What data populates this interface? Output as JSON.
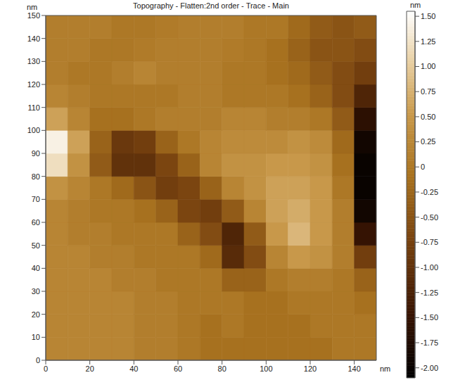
{
  "chart_data": {
    "type": "heatmap",
    "title": "Topography - Flatten:2nd order - Trace - Main",
    "x_label": "nm",
    "y_label": "nm",
    "xlim": [
      0,
      150
    ],
    "ylim": [
      0,
      150
    ],
    "xticks": [
      0,
      20,
      40,
      60,
      80,
      100,
      120,
      140
    ],
    "yticks": [
      0,
      10,
      20,
      30,
      40,
      50,
      60,
      70,
      80,
      90,
      100,
      110,
      120,
      130,
      140,
      150
    ],
    "x_bins": [
      0,
      10,
      20,
      30,
      40,
      50,
      60,
      70,
      80,
      90,
      100,
      110,
      120,
      130,
      140,
      150
    ],
    "y_bins": [
      0,
      10,
      20,
      30,
      40,
      50,
      60,
      70,
      80,
      90,
      100,
      110,
      120,
      130,
      140,
      150
    ],
    "cells": [
      [
        0.2,
        0.2,
        0.2,
        0.2,
        0.1,
        0.1,
        0.0,
        -0.1,
        -0.1,
        -0.1,
        -0.1,
        -0.1,
        -0.1,
        0.0,
        0.0
      ],
      [
        0.2,
        0.2,
        0.2,
        0.2,
        0.1,
        0.1,
        0.0,
        -0.1,
        0.0,
        -0.1,
        -0.1,
        -0.1,
        0.0,
        0.0,
        0.0
      ],
      [
        0.2,
        0.2,
        0.2,
        0.2,
        0.1,
        0.1,
        0.0,
        0.0,
        0.0,
        -0.1,
        -0.1,
        0.0,
        0.0,
        0.0,
        -0.1
      ],
      [
        0.2,
        0.2,
        0.2,
        0.1,
        0.1,
        0.0,
        0.0,
        0.0,
        -0.3,
        -0.3,
        0.0,
        0.1,
        0.1,
        0.0,
        -0.3
      ],
      [
        0.2,
        0.2,
        0.1,
        0.1,
        0.0,
        0.0,
        0.0,
        -0.2,
        -1.1,
        -0.6,
        0.2,
        0.5,
        0.4,
        0.1,
        -0.8
      ],
      [
        0.2,
        0.1,
        0.1,
        0.0,
        0.0,
        0.0,
        -0.3,
        -0.6,
        -1.2,
        -0.4,
        0.5,
        0.8,
        0.5,
        0.1,
        -1.5
      ],
      [
        0.2,
        0.1,
        0.0,
        0.0,
        -0.1,
        -0.3,
        -0.7,
        -0.8,
        -0.4,
        0.2,
        0.6,
        0.7,
        0.5,
        0.1,
        -1.9
      ],
      [
        0.4,
        0.2,
        0.0,
        -0.2,
        -0.5,
        -0.8,
        -0.7,
        -0.3,
        0.2,
        0.4,
        0.6,
        0.6,
        0.5,
        0.0,
        -2.0
      ],
      [
        1.2,
        0.4,
        -0.4,
        -1.0,
        -1.0,
        -0.7,
        -0.3,
        0.2,
        0.4,
        0.4,
        0.5,
        0.5,
        0.4,
        -0.1,
        -2.0
      ],
      [
        1.4,
        0.6,
        -0.3,
        -0.9,
        -0.8,
        -0.3,
        0.0,
        0.2,
        0.3,
        0.3,
        0.3,
        0.4,
        0.3,
        -0.2,
        -1.9
      ],
      [
        0.6,
        0.2,
        -0.1,
        -0.1,
        0.0,
        0.1,
        0.1,
        0.1,
        0.2,
        0.2,
        0.1,
        0.1,
        0.0,
        -0.4,
        -1.6
      ],
      [
        0.2,
        0.1,
        0.0,
        0.0,
        0.0,
        0.0,
        0.1,
        0.1,
        0.0,
        0.0,
        0.0,
        -0.1,
        -0.3,
        -0.6,
        -1.2
      ],
      [
        0.1,
        0.0,
        0.0,
        0.1,
        0.2,
        0.1,
        0.1,
        0.1,
        0.0,
        0.0,
        -0.1,
        -0.2,
        -0.4,
        -0.6,
        -0.8
      ],
      [
        0.1,
        0.1,
        0.0,
        0.0,
        0.05,
        0.1,
        0.1,
        0.1,
        0.05,
        0.0,
        -0.1,
        -0.3,
        -0.5,
        -0.5,
        -0.6
      ],
      [
        0.1,
        0.1,
        0.1,
        0.0,
        0.0,
        0.05,
        0.1,
        0.1,
        0.1,
        0.0,
        0.0,
        -0.2,
        -0.4,
        -0.5,
        -0.4
      ]
    ],
    "colorbar_label": "nm",
    "colorbar_range": [
      -2.1,
      1.55
    ],
    "colorbar_ticks": [
      {
        "value": 1.5,
        "label": "1.50"
      },
      1.25,
      {
        "value": 1.0,
        "label": "1.00"
      },
      0.75,
      {
        "value": 0.5,
        "label": "0.50"
      },
      0.25,
      0,
      -0.25,
      {
        "value": -0.5,
        "label": "-0.50"
      },
      -0.75,
      {
        "value": -1.0,
        "label": "-1.00"
      },
      -1.25,
      {
        "value": -1.5,
        "label": "-1.50"
      },
      -1.75,
      {
        "value": -2.0,
        "label": "-2.00"
      }
    ]
  }
}
